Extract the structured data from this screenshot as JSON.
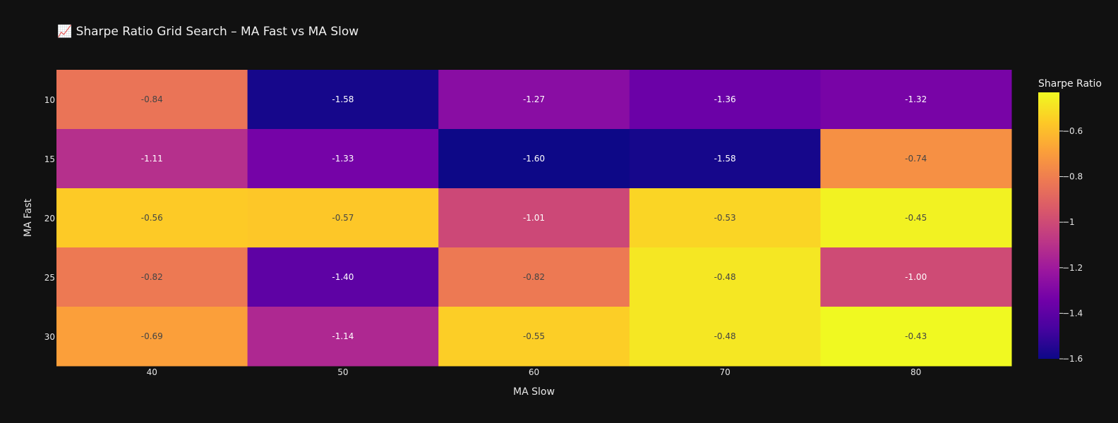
{
  "chart_data": {
    "type": "heatmap",
    "title": "📈 Sharpe Ratio Grid Search – MA Fast vs MA Slow",
    "xlabel": "MA Slow",
    "ylabel": "MA Fast",
    "x": [
      "40",
      "50",
      "60",
      "70",
      "80"
    ],
    "y": [
      "10",
      "15",
      "20",
      "25",
      "30"
    ],
    "z": [
      [
        -0.84,
        -1.58,
        -1.27,
        -1.36,
        -1.32
      ],
      [
        -1.11,
        -1.33,
        -1.6,
        -1.58,
        -0.74
      ],
      [
        -0.56,
        -0.57,
        -1.01,
        -0.53,
        -0.45
      ],
      [
        -0.82,
        -1.4,
        -0.82,
        -0.48,
        -1.0
      ],
      [
        -0.69,
        -1.14,
        -0.55,
        -0.48,
        -0.43
      ]
    ],
    "text": [
      [
        "-0.84",
        "-1.58",
        "-1.27",
        "-1.36",
        "-1.32"
      ],
      [
        "-1.11",
        "-1.33",
        "-1.60",
        "-1.58",
        "-0.74"
      ],
      [
        "-0.56",
        "-0.57",
        "-1.01",
        "-0.53",
        "-0.45"
      ],
      [
        "-0.82",
        "-1.40",
        "-0.82",
        "-0.48",
        "-1.00"
      ],
      [
        "-0.69",
        "-1.14",
        "-0.55",
        "-0.48",
        "-0.43"
      ]
    ],
    "colorscale": "Plasma",
    "zrange": [
      -1.6,
      -0.43
    ],
    "colorbar": {
      "title": "Sharpe Ratio",
      "ticks": [
        -0.6,
        -0.8,
        -1,
        -1.2,
        -1.4,
        -1.6
      ],
      "ticklabels": [
        "−0.6",
        "−0.8",
        "−1",
        "−1.2",
        "−1.4",
        "−1.6"
      ]
    },
    "background": "#111111"
  }
}
